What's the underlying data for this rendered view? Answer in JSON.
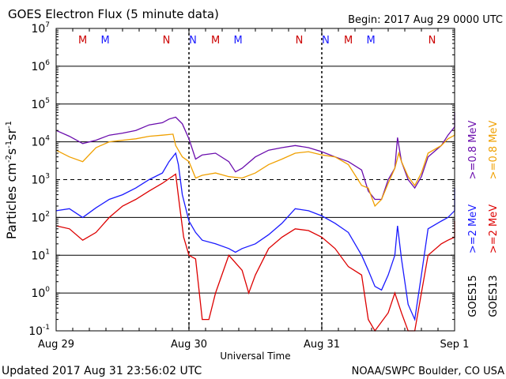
{
  "header": {
    "title": "GOES Electron Flux (5 minute data)",
    "begin": "Begin: 2017 Aug 29 0000 UTC"
  },
  "footer": {
    "updated": "Updated 2017 Aug 31 23:56:02 UTC",
    "credit": "NOAA/SWPC Boulder, CO USA"
  },
  "chart_data": {
    "type": "line",
    "title": "GOES Electron Flux (5 minute data)",
    "xlabel": "Universal Time",
    "ylabel": "Particles cm-2s-1sr-1",
    "y_scale": "log",
    "ylim": [
      0.1,
      10000000
    ],
    "y_ticks": [
      {
        "value": 0.1,
        "base": "10",
        "exp": "-1"
      },
      {
        "value": 1,
        "base": "10",
        "exp": "0"
      },
      {
        "value": 10,
        "base": "10",
        "exp": "1"
      },
      {
        "value": 100,
        "base": "10",
        "exp": "2"
      },
      {
        "value": 1000,
        "base": "10",
        "exp": "3"
      },
      {
        "value": 10000,
        "base": "10",
        "exp": "4"
      },
      {
        "value": 100000,
        "base": "10",
        "exp": "5"
      },
      {
        "value": 1000000,
        "base": "10",
        "exp": "6"
      },
      {
        "value": 10000000,
        "base": "10",
        "exp": "7"
      }
    ],
    "x_range_days": [
      0,
      3
    ],
    "x_ticks": [
      {
        "day": 0,
        "label": "Aug 29"
      },
      {
        "day": 1,
        "label": "Aug 30"
      },
      {
        "day": 2,
        "label": "Aug 31"
      },
      {
        "day": 3,
        "label": "Sep 1"
      }
    ],
    "threshold_line": 1000,
    "grid": true,
    "markers": [
      {
        "day": 0.2,
        "label": "M",
        "color": "#cc0000"
      },
      {
        "day": 0.37,
        "label": "M",
        "color": "#1a1aff"
      },
      {
        "day": 0.83,
        "label": "N",
        "color": "#cc0000"
      },
      {
        "day": 1.03,
        "label": "N",
        "color": "#1a1aff"
      },
      {
        "day": 1.2,
        "label": "M",
        "color": "#cc0000"
      },
      {
        "day": 1.37,
        "label": "M",
        "color": "#1a1aff"
      },
      {
        "day": 1.83,
        "label": "N",
        "color": "#cc0000"
      },
      {
        "day": 2.03,
        "label": "N",
        "color": "#1a1aff"
      },
      {
        "day": 2.2,
        "label": "M",
        "color": "#cc0000"
      },
      {
        "day": 2.37,
        "label": "M",
        "color": "#1a1aff"
      },
      {
        "day": 2.83,
        "label": "N",
        "color": "#cc0000"
      },
      {
        "day": 3.03,
        "label": "N",
        "color": "#1a1aff"
      }
    ],
    "legend": {
      "placement": "right",
      "columns": [
        {
          "satellite": "GOES15",
          "entries": [
            {
              "label": ">=2   MeV",
              "color": "#1a1aff"
            },
            {
              "label": ">=0.8   MeV",
              "color": "#6a0dad"
            }
          ]
        },
        {
          "satellite": "GOES13",
          "entries": [
            {
              "label": ">=2   MeV",
              "color": "#dd0000"
            },
            {
              "label": ">=0.8   MeV",
              "color": "#f0a000"
            }
          ]
        }
      ]
    },
    "series": [
      {
        "color": "#6a0dad",
        "points": [
          [
            0,
            20000
          ],
          [
            0.1,
            14000
          ],
          [
            0.2,
            9000
          ],
          [
            0.3,
            11000
          ],
          [
            0.4,
            15000
          ],
          [
            0.5,
            17000
          ],
          [
            0.6,
            20000
          ],
          [
            0.7,
            28000
          ],
          [
            0.8,
            32000
          ],
          [
            0.85,
            40000
          ],
          [
            0.9,
            45000
          ],
          [
            0.95,
            30000
          ],
          [
            1.0,
            12000
          ],
          [
            1.05,
            3500
          ],
          [
            1.1,
            4500
          ],
          [
            1.2,
            5000
          ],
          [
            1.3,
            3000
          ],
          [
            1.35,
            1600
          ],
          [
            1.4,
            2000
          ],
          [
            1.5,
            4000
          ],
          [
            1.6,
            6000
          ],
          [
            1.7,
            7000
          ],
          [
            1.8,
            8000
          ],
          [
            1.9,
            7000
          ],
          [
            2.0,
            5500
          ],
          [
            2.1,
            4000
          ],
          [
            2.2,
            3000
          ],
          [
            2.3,
            1800
          ],
          [
            2.35,
            500
          ],
          [
            2.4,
            300
          ],
          [
            2.45,
            300
          ],
          [
            2.5,
            1000
          ],
          [
            2.55,
            2000
          ],
          [
            2.57,
            13000
          ],
          [
            2.6,
            3000
          ],
          [
            2.65,
            1000
          ],
          [
            2.7,
            600
          ],
          [
            2.75,
            1200
          ],
          [
            2.8,
            4000
          ],
          [
            2.9,
            8000
          ],
          [
            2.95,
            15000
          ],
          [
            3.0,
            25000
          ],
          [
            3.1,
            40000
          ],
          [
            3.2,
            50000
          ],
          [
            3.27,
            60000
          ]
        ]
      },
      {
        "color": "#f0a000",
        "points": [
          [
            0,
            6000
          ],
          [
            0.1,
            4000
          ],
          [
            0.2,
            3000
          ],
          [
            0.3,
            7000
          ],
          [
            0.4,
            10000
          ],
          [
            0.5,
            11000
          ],
          [
            0.6,
            12000
          ],
          [
            0.7,
            14000
          ],
          [
            0.8,
            15000
          ],
          [
            0.88,
            16000
          ],
          [
            0.9,
            8000
          ],
          [
            0.95,
            4000
          ],
          [
            1.0,
            3000
          ],
          [
            1.05,
            1100
          ],
          [
            1.1,
            1300
          ],
          [
            1.2,
            1500
          ],
          [
            1.3,
            1200
          ],
          [
            1.4,
            1100
          ],
          [
            1.5,
            1500
          ],
          [
            1.6,
            2500
          ],
          [
            1.7,
            3500
          ],
          [
            1.8,
            5000
          ],
          [
            1.9,
            5500
          ],
          [
            2.0,
            4500
          ],
          [
            2.1,
            4000
          ],
          [
            2.2,
            2500
          ],
          [
            2.3,
            700
          ],
          [
            2.35,
            600
          ],
          [
            2.4,
            200
          ],
          [
            2.45,
            300
          ],
          [
            2.5,
            800
          ],
          [
            2.55,
            2000
          ],
          [
            2.58,
            5000
          ],
          [
            2.6,
            3000
          ],
          [
            2.65,
            1200
          ],
          [
            2.7,
            700
          ],
          [
            2.75,
            1500
          ],
          [
            2.8,
            5000
          ],
          [
            2.9,
            8000
          ],
          [
            2.95,
            12000
          ],
          [
            3.0,
            15000
          ],
          [
            3.1,
            18000
          ],
          [
            3.2,
            20000
          ],
          [
            3.27,
            22000
          ]
        ]
      },
      {
        "color": "#1a1aff",
        "points": [
          [
            0,
            150
          ],
          [
            0.1,
            170
          ],
          [
            0.2,
            100
          ],
          [
            0.3,
            180
          ],
          [
            0.4,
            300
          ],
          [
            0.5,
            400
          ],
          [
            0.6,
            600
          ],
          [
            0.7,
            1000
          ],
          [
            0.8,
            1500
          ],
          [
            0.85,
            3000
          ],
          [
            0.9,
            5000
          ],
          [
            0.92,
            2500
          ],
          [
            0.95,
            400
          ],
          [
            1.0,
            80
          ],
          [
            1.05,
            40
          ],
          [
            1.1,
            25
          ],
          [
            1.2,
            20
          ],
          [
            1.3,
            15
          ],
          [
            1.35,
            12
          ],
          [
            1.4,
            15
          ],
          [
            1.5,
            20
          ],
          [
            1.6,
            35
          ],
          [
            1.7,
            70
          ],
          [
            1.8,
            170
          ],
          [
            1.9,
            150
          ],
          [
            2.0,
            110
          ],
          [
            2.1,
            70
          ],
          [
            2.2,
            40
          ],
          [
            2.3,
            10
          ],
          [
            2.35,
            4
          ],
          [
            2.4,
            1.5
          ],
          [
            2.45,
            1.2
          ],
          [
            2.5,
            3
          ],
          [
            2.55,
            10
          ],
          [
            2.57,
            60
          ],
          [
            2.6,
            8
          ],
          [
            2.65,
            0.5
          ],
          [
            2.7,
            0.2
          ],
          [
            2.75,
            3
          ],
          [
            2.8,
            50
          ],
          [
            2.9,
            80
          ],
          [
            2.95,
            100
          ],
          [
            3.0,
            150
          ],
          [
            3.1,
            250
          ],
          [
            3.2,
            400
          ],
          [
            3.27,
            600
          ]
        ]
      },
      {
        "color": "#dd0000",
        "points": [
          [
            0,
            60
          ],
          [
            0.1,
            50
          ],
          [
            0.2,
            25
          ],
          [
            0.3,
            40
          ],
          [
            0.4,
            100
          ],
          [
            0.5,
            200
          ],
          [
            0.6,
            300
          ],
          [
            0.7,
            500
          ],
          [
            0.8,
            800
          ],
          [
            0.9,
            1400
          ],
          [
            0.93,
            200
          ],
          [
            0.96,
            30
          ],
          [
            1.0,
            10
          ],
          [
            1.05,
            8
          ],
          [
            1.1,
            0.2
          ],
          [
            1.15,
            0.2
          ],
          [
            1.2,
            1
          ],
          [
            1.3,
            10
          ],
          [
            1.4,
            4
          ],
          [
            1.45,
            1
          ],
          [
            1.5,
            3
          ],
          [
            1.6,
            15
          ],
          [
            1.7,
            30
          ],
          [
            1.8,
            50
          ],
          [
            1.9,
            45
          ],
          [
            2.0,
            30
          ],
          [
            2.1,
            15
          ],
          [
            2.2,
            5
          ],
          [
            2.3,
            3
          ],
          [
            2.35,
            0.2
          ],
          [
            2.4,
            0.1
          ],
          [
            2.5,
            0.3
          ],
          [
            2.55,
            1
          ],
          [
            2.6,
            0.3
          ],
          [
            2.65,
            0.1
          ],
          [
            2.7,
            0.1
          ],
          [
            2.75,
            1
          ],
          [
            2.8,
            10
          ],
          [
            2.9,
            20
          ],
          [
            2.95,
            25
          ],
          [
            3.0,
            30
          ],
          [
            3.1,
            50
          ],
          [
            3.2,
            70
          ],
          [
            3.27,
            80
          ]
        ]
      }
    ]
  }
}
